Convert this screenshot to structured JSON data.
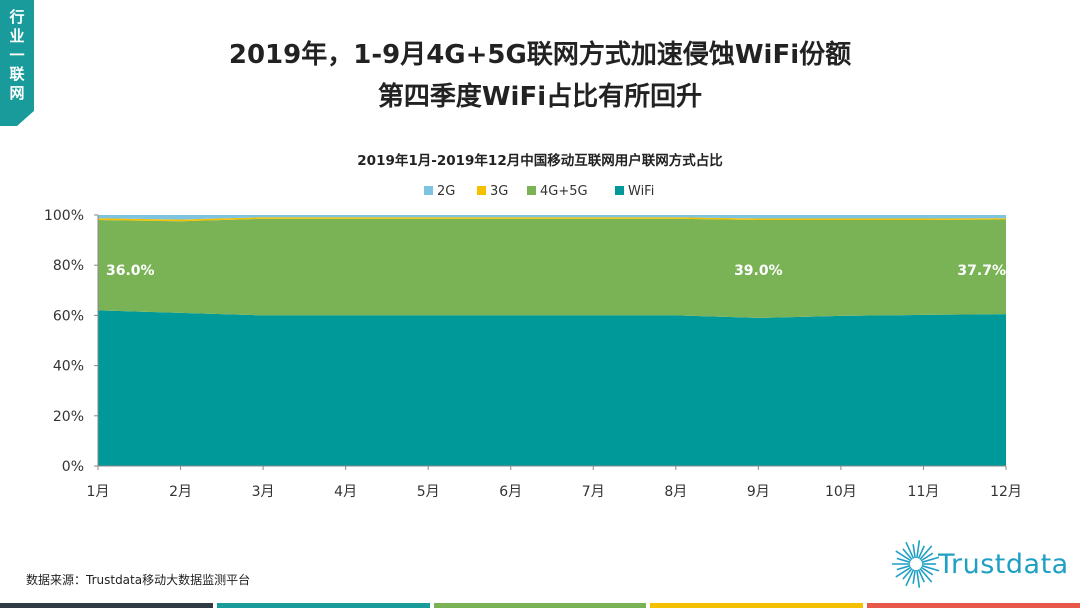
{
  "corner_tag": "行业一联网",
  "title_line1": "2019年，1-9月4G+5G联网方式加速侵蚀WiFi份额",
  "title_line2": "第四季度WiFi占比有所回升",
  "source_text": "数据来源：Trustdata移动大数据监测平台",
  "logo_text": "Trustdata",
  "colors": {
    "2G": "#7ec4e0",
    "3G": "#f5c000",
    "4G+5G": "#7ab356",
    "WiFi": "#00999a",
    "accent": "#1a9b9b",
    "footer": [
      "#2f3a45",
      "#1a9b9b",
      "#7ab356",
      "#f5c000",
      "#e8584a"
    ]
  },
  "chart_data": {
    "type": "area",
    "stacked": true,
    "title": "2019年1月-2019年12月中国移动互联网用户联网方式占比",
    "categories": [
      "1月",
      "2月",
      "3月",
      "4月",
      "5月",
      "6月",
      "7月",
      "8月",
      "9月",
      "10月",
      "11月",
      "12月"
    ],
    "y_ticks": [
      "0%",
      "20%",
      "40%",
      "60%",
      "80%",
      "100%"
    ],
    "ylim": [
      0,
      100
    ],
    "legend_position": "top",
    "series": [
      {
        "name": "WiFi",
        "values": [
          62.0,
          61.0,
          60.0,
          60.0,
          60.0,
          60.0,
          60.0,
          60.0,
          59.0,
          59.8,
          60.2,
          60.5
        ]
      },
      {
        "name": "4G+5G",
        "values": [
          36.0,
          36.5,
          38.5,
          38.5,
          38.5,
          38.5,
          38.5,
          38.5,
          39.0,
          38.2,
          37.8,
          37.7
        ]
      },
      {
        "name": "3G",
        "values": [
          0.7,
          0.7,
          0.6,
          0.6,
          0.6,
          0.6,
          0.6,
          0.6,
          0.6,
          0.6,
          0.6,
          0.5
        ]
      },
      {
        "name": "2G",
        "values": [
          1.3,
          1.8,
          0.9,
          0.9,
          0.9,
          0.9,
          0.9,
          0.9,
          1.4,
          1.4,
          1.4,
          1.3
        ]
      }
    ],
    "annotations": [
      {
        "series": "4G+5G",
        "category": "1月",
        "label": "36.0%"
      },
      {
        "series": "4G+5G",
        "category": "9月",
        "label": "39.0%"
      },
      {
        "series": "4G+5G",
        "category": "12月",
        "label": "37.7%"
      }
    ]
  }
}
